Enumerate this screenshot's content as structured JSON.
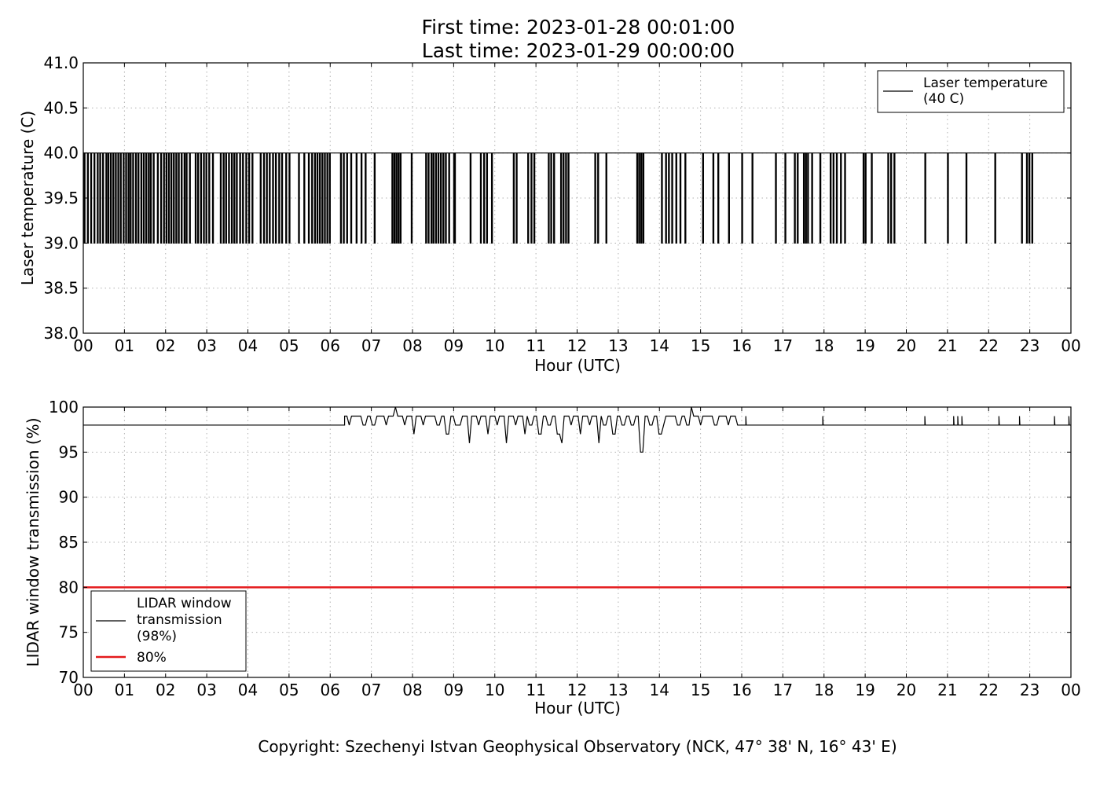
{
  "header": {
    "title_line1": "First time: 2023-01-28 00:01:00",
    "title_line2": "Last time: 2023-01-29 00:00:00"
  },
  "footer": {
    "copyright": "Copyright: Szechenyi Istvan Geophysical Observatory (NCK, 47° 38' N, 16° 43' E)"
  },
  "colors": {
    "series": "#000000",
    "threshold": "#e41a1c",
    "grid": "#b0b0b0"
  },
  "chart_data": [
    {
      "type": "line",
      "xlabel": "Hour (UTC)",
      "ylabel": "Laser temperature (C)",
      "xlim": [
        0,
        24
      ],
      "ylim": [
        38.0,
        41.0
      ],
      "x_ticks": [
        "00",
        "01",
        "02",
        "03",
        "04",
        "05",
        "06",
        "07",
        "08",
        "09",
        "10",
        "11",
        "12",
        "13",
        "14",
        "15",
        "16",
        "17",
        "18",
        "19",
        "20",
        "21",
        "22",
        "23",
        "00"
      ],
      "y_ticks": [
        "38.0",
        "38.5",
        "39.0",
        "39.5",
        "40.0",
        "40.5",
        "41.0"
      ],
      "grid": true,
      "legend_position": "top-right",
      "series": [
        {
          "name": "Laser temperature\n(40 C)",
          "color": "#000000",
          "baseline": 40.0,
          "drop_value": 39.0,
          "drops_at_hour": [
            0.02,
            0.1,
            0.18,
            0.26,
            0.34,
            0.4,
            0.47,
            0.55,
            0.6,
            0.66,
            0.72,
            0.78,
            0.84,
            0.9,
            0.97,
            1.03,
            1.09,
            1.14,
            1.2,
            1.27,
            1.33,
            1.4,
            1.46,
            1.52,
            1.58,
            1.63,
            1.7,
            1.8,
            1.88,
            1.95,
            2.01,
            2.07,
            2.13,
            2.19,
            2.25,
            2.31,
            2.38,
            2.45,
            2.5,
            2.58,
            2.72,
            2.78,
            2.85,
            2.92,
            2.98,
            3.05,
            3.14,
            3.33,
            3.4,
            3.46,
            3.53,
            3.6,
            3.66,
            3.72,
            3.8,
            3.87,
            3.95,
            4.02,
            4.1,
            4.3,
            4.38,
            4.45,
            4.52,
            4.6,
            4.67,
            4.75,
            4.82,
            4.92,
            5.0,
            5.23,
            5.36,
            5.47,
            5.55,
            5.62,
            5.68,
            5.74,
            5.8,
            5.86,
            5.92,
            5.98,
            6.25,
            6.32,
            6.4,
            6.5,
            6.63,
            6.75,
            6.85,
            7.07,
            7.5,
            7.55,
            7.6,
            7.65,
            7.7,
            7.97,
            8.32,
            8.38,
            8.45,
            8.5,
            8.56,
            8.62,
            8.68,
            8.74,
            8.8,
            8.88,
            9.0,
            9.02,
            9.4,
            9.65,
            9.73,
            9.8,
            9.92,
            10.45,
            10.52,
            10.8,
            10.88,
            10.95,
            11.3,
            11.36,
            11.43,
            11.6,
            11.66,
            11.72,
            11.78,
            12.43,
            12.5,
            12.7,
            13.45,
            13.5,
            13.55,
            13.6,
            14.05,
            14.15,
            14.22,
            14.3,
            14.4,
            14.5,
            14.62,
            15.05,
            15.3,
            15.42,
            15.68,
            16.0,
            16.25,
            16.82,
            17.05,
            17.28,
            17.35,
            17.5,
            17.55,
            17.6,
            17.7,
            17.9,
            18.15,
            18.22,
            18.3,
            18.4,
            18.5,
            18.95,
            19.0,
            19.15,
            19.55,
            19.62,
            19.7,
            20.45,
            21.0,
            21.45,
            22.15,
            22.8,
            22.92,
            22.98,
            23.05
          ]
        }
      ]
    },
    {
      "type": "line",
      "xlabel": "Hour (UTC)",
      "ylabel": "LIDAR window transmission (%)",
      "xlim": [
        0,
        24
      ],
      "ylim": [
        70,
        100
      ],
      "x_ticks": [
        "00",
        "01",
        "02",
        "03",
        "04",
        "05",
        "06",
        "07",
        "08",
        "09",
        "10",
        "11",
        "12",
        "13",
        "14",
        "15",
        "16",
        "17",
        "18",
        "19",
        "20",
        "21",
        "22",
        "23",
        "00"
      ],
      "y_ticks": [
        "70",
        "75",
        "80",
        "85",
        "90",
        "95",
        "100"
      ],
      "grid": true,
      "legend_position": "bottom-left",
      "noisy_interval_hours": [
        6.35,
        15.9
      ],
      "series": [
        {
          "name": "LIDAR window\ntransmission\n(98%)",
          "color": "#000000",
          "baseline": 98,
          "noise_values": [
            99,
            98,
            99,
            99,
            98,
            99,
            98,
            99,
            99,
            98,
            99,
            100,
            99,
            98,
            99,
            97,
            99,
            98,
            99,
            99,
            98,
            99,
            97,
            99,
            98,
            98,
            99,
            96,
            99,
            98,
            99,
            97,
            99,
            98,
            99,
            96,
            99,
            98,
            99,
            97,
            98,
            99,
            97,
            99,
            98,
            99,
            97,
            96,
            99,
            98,
            99,
            97,
            99,
            98,
            99,
            96,
            98,
            99,
            97,
            99,
            98,
            99,
            98,
            99,
            95,
            99,
            98,
            99,
            97,
            98,
            99,
            99,
            98,
            99,
            98,
            100,
            99,
            98,
            99,
            99,
            98,
            99,
            99,
            98,
            99
          ],
          "spikes_at_hour": [
            [
              16.1,
              99
            ],
            [
              17.97,
              99
            ],
            [
              20.45,
              99
            ],
            [
              21.15,
              99
            ],
            [
              21.25,
              99
            ],
            [
              21.35,
              99
            ],
            [
              22.25,
              99
            ],
            [
              22.75,
              99
            ],
            [
              23.6,
              99
            ],
            [
              23.95,
              99
            ]
          ]
        },
        {
          "name": "80%",
          "color": "#e41a1c",
          "values_constant": 80
        }
      ]
    }
  ]
}
